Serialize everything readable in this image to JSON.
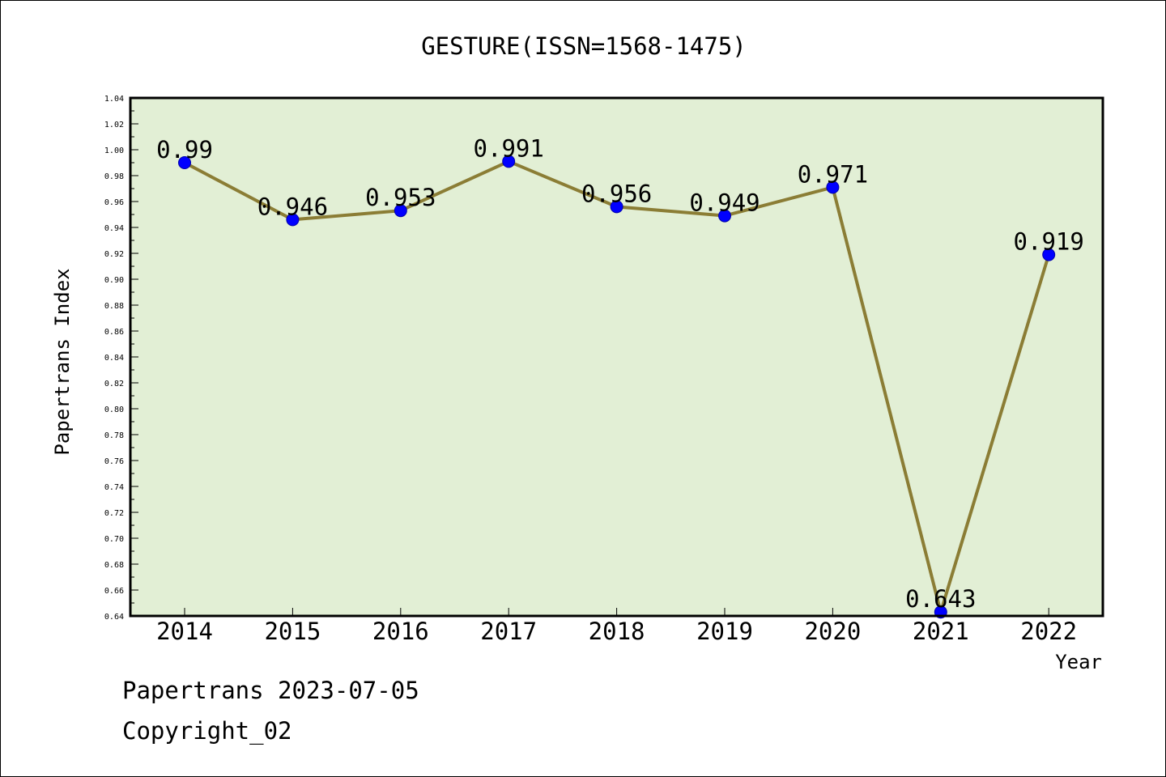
{
  "chart_data": {
    "type": "line",
    "title": "GESTURE(ISSN=1568-1475)",
    "xlabel": "Year",
    "ylabel": "Papertrans Index",
    "categories": [
      "2014",
      "2015",
      "2016",
      "2017",
      "2018",
      "2019",
      "2020",
      "2021",
      "2022"
    ],
    "values": [
      0.99,
      0.946,
      0.953,
      0.991,
      0.956,
      0.949,
      0.971,
      0.643,
      0.919
    ],
    "data_labels": [
      "0.99",
      "0.946",
      "0.953",
      "0.991",
      "0.956",
      "0.949",
      "0.971",
      "0.643",
      "0.919"
    ],
    "ylim": [
      0.64,
      1.04
    ],
    "yticks": [
      "0.64",
      "0.66",
      "0.68",
      "0.70",
      "0.72",
      "0.74",
      "0.76",
      "0.78",
      "0.80",
      "0.82",
      "0.84",
      "0.86",
      "0.88",
      "0.90",
      "0.92",
      "0.94",
      "0.96",
      "0.98",
      "1.00",
      "1.02",
      "1.04"
    ],
    "grid": false,
    "legend": "none",
    "colors": {
      "plot_background": "#e2efd5",
      "line": "#8b7d35",
      "marker": "#0000ff"
    }
  },
  "footer": {
    "line1": "Papertrans 2023-07-05",
    "line2": "Copyright_02"
  }
}
